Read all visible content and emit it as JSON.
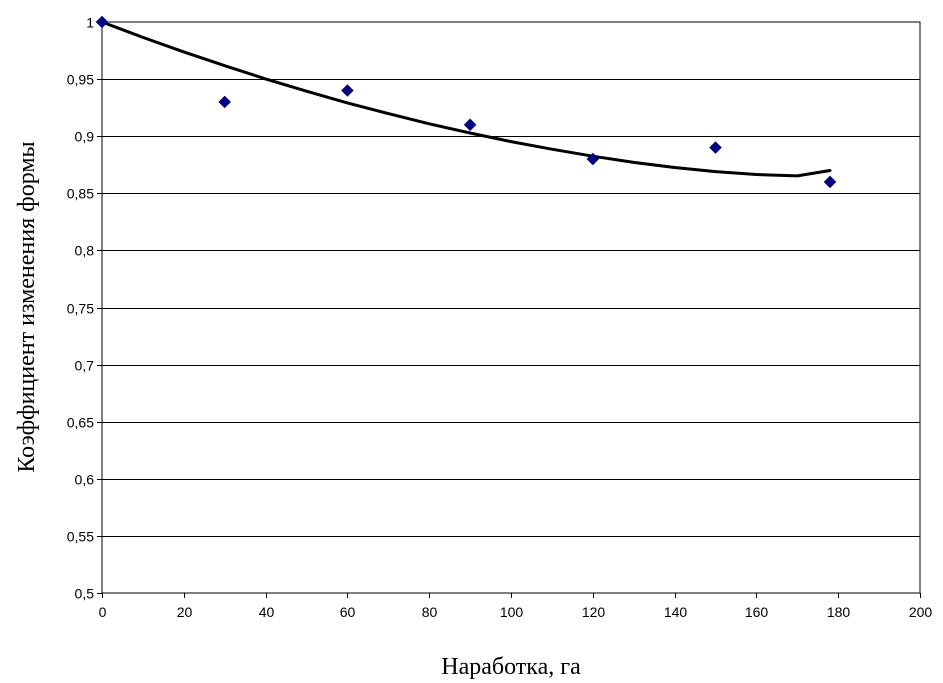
{
  "chart_data": {
    "type": "scatter",
    "title": "",
    "xlabel": "Наработка, га",
    "ylabel": "Коэффициент изменения формы",
    "xlim": [
      0,
      200
    ],
    "ylim": [
      0.5,
      1.0
    ],
    "x_ticks": [
      0,
      20,
      40,
      60,
      80,
      100,
      120,
      140,
      160,
      180,
      200
    ],
    "x_tick_labels": [
      "0",
      "20",
      "40",
      "60",
      "80",
      "100",
      "120",
      "140",
      "160",
      "180",
      "200"
    ],
    "y_ticks": [
      0.5,
      0.55,
      0.6,
      0.65,
      0.7,
      0.75,
      0.8,
      0.85,
      0.9,
      0.95,
      1.0
    ],
    "y_tick_labels": [
      "0,5",
      "0,55",
      "0,6",
      "0,65",
      "0,7",
      "0,75",
      "0,8",
      "0,85",
      "0,9",
      "0,95",
      "1"
    ],
    "grid": "horizontal",
    "legend": "none",
    "series": [
      {
        "type": "scatter",
        "marker": "diamond",
        "color": "#000080",
        "x": [
          0,
          30,
          60,
          90,
          120,
          150,
          178
        ],
        "y": [
          1.0,
          0.93,
          0.94,
          0.91,
          0.88,
          0.89,
          0.86
        ]
      },
      {
        "type": "line",
        "color": "#000000",
        "x": [
          0,
          10,
          20,
          30,
          40,
          50,
          60,
          70,
          80,
          90,
          100,
          110,
          120,
          130,
          140,
          150,
          160,
          170,
          178
        ],
        "y": [
          1.0,
          0.9865,
          0.9738,
          0.9617,
          0.9502,
          0.9394,
          0.9292,
          0.9198,
          0.9109,
          0.9028,
          0.8953,
          0.8886,
          0.8825,
          0.8771,
          0.8726,
          0.869,
          0.8665,
          0.8652,
          0.87
        ]
      }
    ]
  }
}
